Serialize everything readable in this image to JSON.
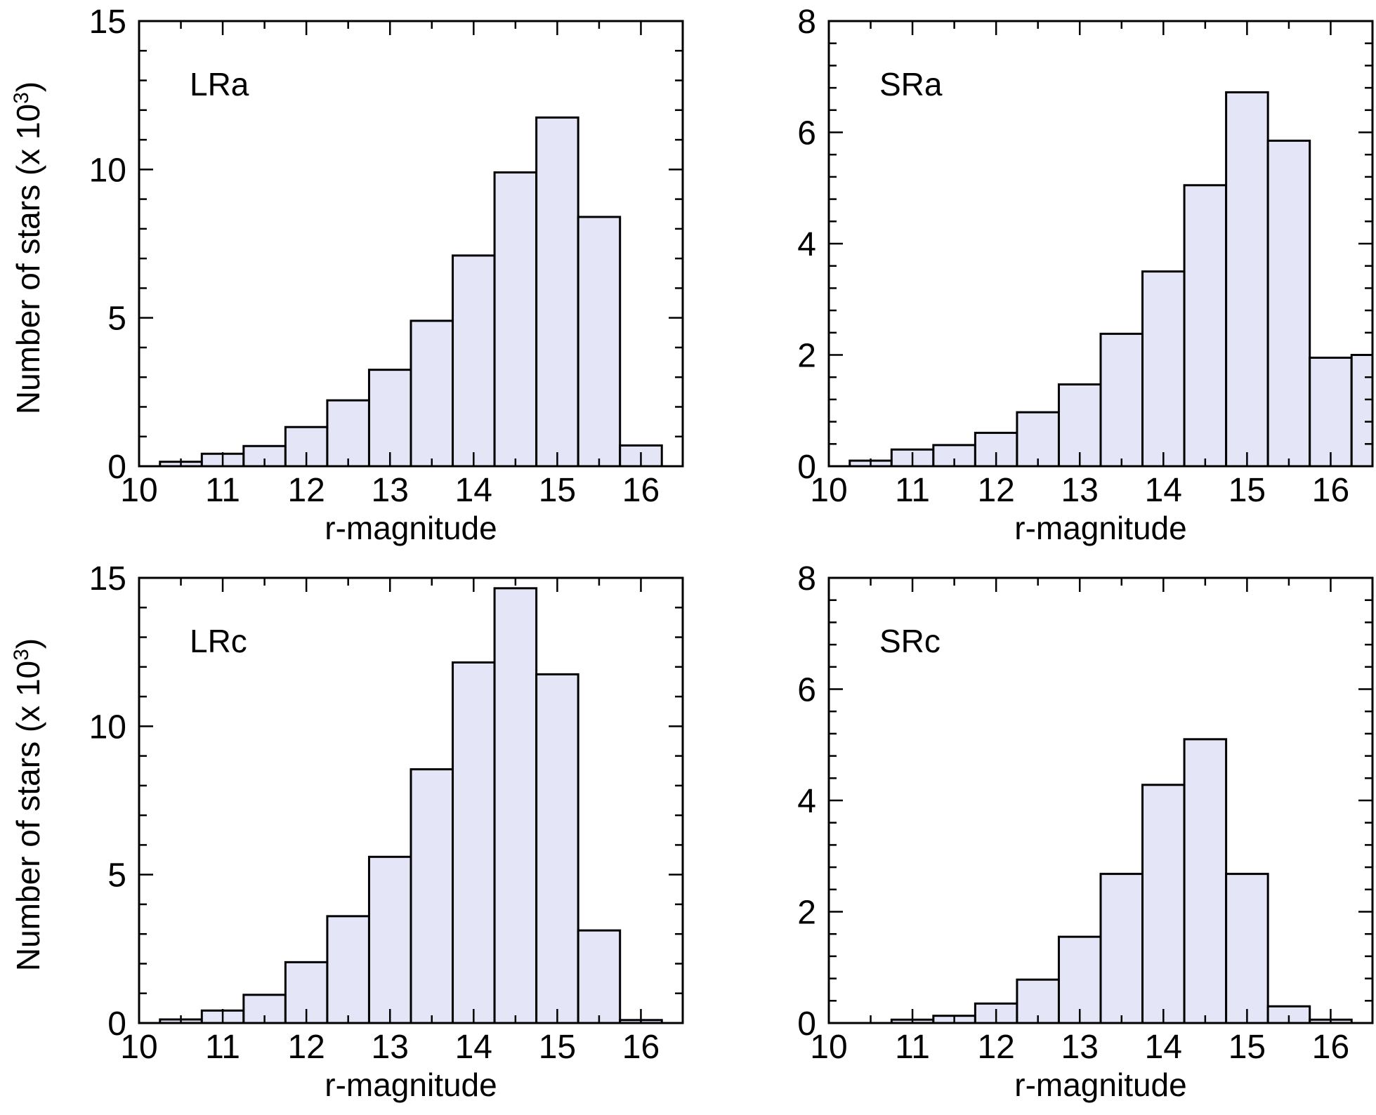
{
  "chart_data": [
    {
      "type": "bar",
      "panel": "LRa",
      "title": "LRa",
      "xlabel": "r-magnitude",
      "ylabel": "Number of stars (x 10",
      "ylabel_exp": "3",
      "ylabel_close": ")",
      "xlim": [
        10,
        16.5
      ],
      "ylim": [
        0,
        15
      ],
      "xticks": [
        10,
        11,
        12,
        13,
        14,
        15,
        16
      ],
      "xtick_labels": [
        "10",
        "11",
        "12",
        "13",
        "14",
        "15",
        "16"
      ],
      "yticks": [
        0,
        5,
        10,
        15
      ],
      "ytick_labels": [
        "0",
        "5",
        "10",
        "15"
      ],
      "bin_edges": [
        10.25,
        10.75,
        11.25,
        11.75,
        12.25,
        12.75,
        13.25,
        13.75,
        14.25,
        14.75,
        15.25,
        15.75,
        16.25
      ],
      "values": [
        0.15,
        0.42,
        0.68,
        1.32,
        2.22,
        3.25,
        4.9,
        7.1,
        9.9,
        11.75,
        8.4,
        0.7
      ]
    },
    {
      "type": "bar",
      "panel": "SRa",
      "title": "SRa",
      "xlabel": "r-magnitude",
      "xlim": [
        10,
        16.5
      ],
      "ylim": [
        0,
        8
      ],
      "xticks": [
        10,
        11,
        12,
        13,
        14,
        15,
        16
      ],
      "xtick_labels": [
        "10",
        "11",
        "12",
        "13",
        "14",
        "15",
        "16"
      ],
      "yticks": [
        0,
        2,
        4,
        6,
        8
      ],
      "ytick_labels": [
        "0",
        "2",
        "4",
        "6",
        "8"
      ],
      "bin_edges": [
        10.25,
        10.75,
        11.25,
        11.75,
        12.25,
        12.75,
        13.25,
        13.75,
        14.25,
        14.75,
        15.25,
        15.75,
        16.25,
        16.75
      ],
      "values": [
        0.1,
        0.3,
        0.38,
        0.6,
        0.97,
        1.47,
        2.38,
        3.5,
        5.05,
        6.72,
        5.85,
        1.95,
        2.0
      ]
    },
    {
      "type": "bar",
      "panel": "LRc",
      "title": "LRc",
      "xlabel": "r-magnitude",
      "ylabel": "Number of stars  (x 10",
      "ylabel_exp": "3",
      "ylabel_close": ")",
      "xlim": [
        10,
        16.5
      ],
      "ylim": [
        0,
        15
      ],
      "xticks": [
        10,
        11,
        12,
        13,
        14,
        15,
        16
      ],
      "xtick_labels": [
        "10",
        "11",
        "12",
        "13",
        "14",
        "15",
        "16"
      ],
      "yticks": [
        0,
        5,
        10,
        15
      ],
      "ytick_labels": [
        "0",
        "5",
        "10",
        "15"
      ],
      "bin_edges": [
        10.25,
        10.75,
        11.25,
        11.75,
        12.25,
        12.75,
        13.25,
        13.75,
        14.25,
        14.75,
        15.25,
        15.75,
        16.25
      ],
      "values": [
        0.12,
        0.42,
        0.95,
        2.05,
        3.6,
        5.6,
        8.55,
        12.15,
        14.65,
        11.75,
        3.12,
        0.1
      ]
    },
    {
      "type": "bar",
      "panel": "SRc",
      "title": "SRc",
      "xlabel": "r-magnitude",
      "xlim": [
        10,
        16.5
      ],
      "ylim": [
        0,
        8
      ],
      "xticks": [
        10,
        11,
        12,
        13,
        14,
        15,
        16
      ],
      "xtick_labels": [
        "10",
        "11",
        "12",
        "13",
        "14",
        "15",
        "16"
      ],
      "yticks": [
        0,
        2,
        4,
        6,
        8
      ],
      "ytick_labels": [
        "0",
        "2",
        "4",
        "6",
        "8"
      ],
      "bin_edges": [
        10.75,
        11.25,
        11.75,
        12.25,
        12.75,
        13.25,
        13.75,
        14.25,
        14.75,
        15.25,
        15.75,
        16.25
      ],
      "values": [
        0.06,
        0.13,
        0.35,
        0.78,
        1.55,
        2.68,
        4.28,
        5.1,
        2.68,
        0.3,
        0.06
      ]
    }
  ]
}
